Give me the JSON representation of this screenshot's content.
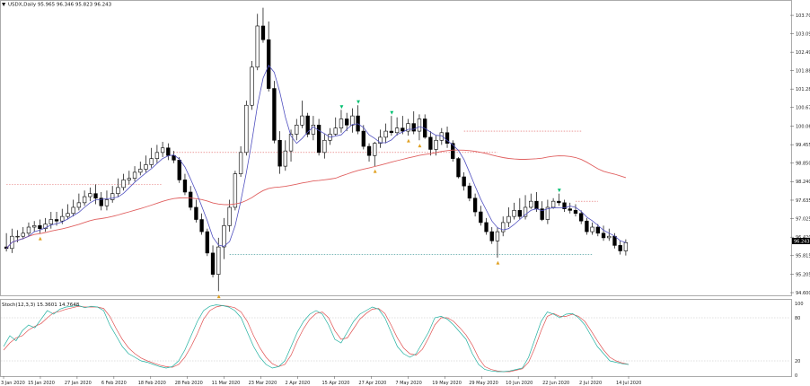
{
  "window": {
    "symbol_title": "USDX,Daily  95.965 96.346 95.823 96.243",
    "menu_glyph": "▼"
  },
  "oscillator": {
    "title": "Stoch(12,3,3) 15.3601 14.7648",
    "levels": [
      "100",
      "80",
      "20",
      "0"
    ]
  },
  "price_axis": {
    "labels": [
      "103.700",
      "103.095",
      "102.490",
      "101.886",
      "101.281",
      "100.676",
      "100.060",
      "99.455",
      "98.850",
      "98.240",
      "97.635",
      "97.025",
      "96.420",
      "95.815",
      "95.205",
      "94.600"
    ],
    "current_price": "96.243"
  },
  "time_axis": {
    "labels": [
      "3 Jan 2020",
      "15 Jan 2020",
      "27 Jan 2020",
      "6 Feb 2020",
      "18 Feb 2020",
      "28 Feb 2020",
      "11 Mar 2020",
      "23 Mar 2020",
      "2 Apr 2020",
      "15 Apr 2020",
      "27 Apr 2020",
      "7 May 2020",
      "19 May 2020",
      "29 May 2020",
      "10 Jun 2020",
      "22 Jun 2020",
      "2 Jul 2020",
      "14 Jul 2020"
    ]
  },
  "colors": {
    "bull_candle": "#ffffff",
    "bear_candle": "#000000",
    "ma_long": "#e06060",
    "ma_short": "#5050c0",
    "stoch_main": "#20b0a0",
    "stoch_signal": "#e05050",
    "sr_line": "#e06060",
    "support_line": "#309090",
    "grid": "#c0c0c0",
    "arrow_up": "#00c070",
    "arrow_down": "#e0a020"
  },
  "chart_data": {
    "type": "candlestick",
    "title": "USDX,Daily  95.965 96.346 95.823 96.243",
    "ylim": [
      94.6,
      103.85
    ],
    "series": [
      {
        "kind": "ohlc",
        "o": [
          96.1,
          96.05,
          96.45,
          96.45,
          96.55,
          96.75,
          96.8,
          96.7,
          96.85,
          97.0,
          96.95,
          97.1,
          97.2,
          97.4,
          97.55,
          97.75,
          97.85,
          97.7,
          97.45,
          97.65,
          97.85,
          98.05,
          98.3,
          98.35,
          98.55,
          98.65,
          98.8,
          99.0,
          99.2,
          99.35,
          99.1,
          98.95,
          98.3,
          97.9,
          97.4,
          97.0,
          96.6,
          95.9,
          95.2,
          96.1,
          96.8,
          97.4,
          98.5,
          99.2,
          100.75,
          102.0,
          103.35,
          102.9,
          101.3,
          99.6,
          98.75,
          99.25,
          99.8,
          100.1,
          100.4,
          99.8,
          100.1,
          99.2,
          99.6,
          99.8,
          100.0,
          100.3,
          100.1,
          100.4,
          99.9,
          99.4,
          99.1,
          99.5,
          99.7,
          99.9,
          99.85,
          100.0,
          99.9,
          100.15,
          99.9,
          100.3,
          99.7,
          99.3,
          99.6,
          99.85,
          99.5,
          99.0,
          98.4,
          98.1,
          97.7,
          97.25,
          96.9,
          96.6,
          96.3,
          96.6,
          96.9,
          97.1,
          97.3,
          97.1,
          97.4,
          97.6,
          97.35,
          97.0,
          97.4,
          97.6,
          97.55,
          97.35,
          97.3,
          97.2,
          96.95,
          96.6,
          96.75,
          96.55,
          96.4,
          96.45,
          96.15,
          95.97
        ],
        "h": [
          96.55,
          96.7,
          96.65,
          96.75,
          96.9,
          96.95,
          97.0,
          97.05,
          97.25,
          97.25,
          97.35,
          97.5,
          97.65,
          97.85,
          97.95,
          98.05,
          98.15,
          97.9,
          97.95,
          98.1,
          98.35,
          98.5,
          98.6,
          98.75,
          98.9,
          99.1,
          99.35,
          99.45,
          99.55,
          99.5,
          99.25,
          99.05,
          98.5,
          98.1,
          97.65,
          97.2,
          96.7,
          96.15,
          96.4,
          97.05,
          97.65,
          98.6,
          99.4,
          100.9,
          102.2,
          103.75,
          103.95,
          103.5,
          101.55,
          99.9,
          99.6,
          99.95,
          100.3,
          100.9,
          100.5,
          100.4,
          100.3,
          99.8,
          100.0,
          100.35,
          100.6,
          100.5,
          100.65,
          100.75,
          100.1,
          99.5,
          99.55,
          99.95,
          100.15,
          100.4,
          100.35,
          100.4,
          100.3,
          100.55,
          100.45,
          100.45,
          99.9,
          99.75,
          100.0,
          100.05,
          99.6,
          99.05,
          98.55,
          98.2,
          97.85,
          97.45,
          97.05,
          96.75,
          96.75,
          97.1,
          97.4,
          97.55,
          97.7,
          97.8,
          97.85,
          97.9,
          97.6,
          97.65,
          97.7,
          97.85,
          97.65,
          97.55,
          97.5,
          97.3,
          97.05,
          96.9,
          96.85,
          96.8,
          96.7,
          96.55,
          96.3,
          96.35
        ],
        "l": [
          95.95,
          95.9,
          96.25,
          96.35,
          96.45,
          96.6,
          96.55,
          96.6,
          96.7,
          96.8,
          96.85,
          97.0,
          97.1,
          97.3,
          97.45,
          97.6,
          97.5,
          97.3,
          97.3,
          97.55,
          97.75,
          97.95,
          98.15,
          98.25,
          98.45,
          98.55,
          98.7,
          98.85,
          99.05,
          98.95,
          98.85,
          98.2,
          97.8,
          97.3,
          96.9,
          96.5,
          95.8,
          95.1,
          94.65,
          95.7,
          96.6,
          97.3,
          98.4,
          99.1,
          100.6,
          101.9,
          102.8,
          101.2,
          99.5,
          98.5,
          98.6,
          98.9,
          99.6,
          100.0,
          99.7,
          99.6,
          99.1,
          99.0,
          99.45,
          99.75,
          99.85,
          99.9,
          99.85,
          99.8,
          99.3,
          98.9,
          98.75,
          99.35,
          99.5,
          99.75,
          99.75,
          99.8,
          99.75,
          99.8,
          99.6,
          99.65,
          99.1,
          99.1,
          99.45,
          99.35,
          98.9,
          98.35,
          97.95,
          97.6,
          97.1,
          96.8,
          96.5,
          96.2,
          95.75,
          96.45,
          96.75,
          97.0,
          97.0,
          97.0,
          97.35,
          97.25,
          96.95,
          96.85,
          97.35,
          97.45,
          97.25,
          97.2,
          97.1,
          96.85,
          96.5,
          96.5,
          96.45,
          96.3,
          96.3,
          96.05,
          95.85,
          95.82
        ],
        "c": [
          96.05,
          96.45,
          96.45,
          96.55,
          96.75,
          96.8,
          96.7,
          96.85,
          97.0,
          96.95,
          97.1,
          97.2,
          97.4,
          97.55,
          97.75,
          97.85,
          97.7,
          97.45,
          97.65,
          97.85,
          98.05,
          98.3,
          98.35,
          98.55,
          98.65,
          98.8,
          99.0,
          99.2,
          99.35,
          99.1,
          98.95,
          98.3,
          97.9,
          97.4,
          97.0,
          96.6,
          95.9,
          95.2,
          96.1,
          96.8,
          97.4,
          98.5,
          99.2,
          100.75,
          102.0,
          103.35,
          102.9,
          101.3,
          99.6,
          98.75,
          99.25,
          99.8,
          100.1,
          100.4,
          99.8,
          100.1,
          99.2,
          99.6,
          99.8,
          100.0,
          100.3,
          100.1,
          100.4,
          99.9,
          99.4,
          99.1,
          99.5,
          99.7,
          99.9,
          99.85,
          100.0,
          99.9,
          100.15,
          99.9,
          100.3,
          99.7,
          99.3,
          99.6,
          99.85,
          99.5,
          99.0,
          98.4,
          98.1,
          97.7,
          97.25,
          96.9,
          96.6,
          96.3,
          96.6,
          96.9,
          97.1,
          97.3,
          97.1,
          97.4,
          97.6,
          97.35,
          97.0,
          97.4,
          97.6,
          97.55,
          97.35,
          97.3,
          97.2,
          96.95,
          96.6,
          96.75,
          96.55,
          96.4,
          96.45,
          96.15,
          95.97,
          96.24
        ]
      }
    ],
    "stochastic": {
      "main": [
        40,
        55,
        48,
        62,
        70,
        66,
        78,
        90,
        85,
        92,
        95,
        96,
        97,
        94,
        96,
        95,
        90,
        70,
        55,
        40,
        30,
        25,
        20,
        18,
        15,
        12,
        10,
        12,
        20,
        35,
        55,
        75,
        90,
        96,
        98,
        97,
        95,
        90,
        80,
        60,
        40,
        25,
        15,
        10,
        12,
        20,
        40,
        60,
        75,
        85,
        90,
        85,
        70,
        50,
        45,
        60,
        75,
        85,
        90,
        95,
        92,
        80,
        60,
        40,
        30,
        25,
        30,
        45,
        60,
        80,
        82,
        78,
        70,
        60,
        50,
        30,
        15,
        8,
        6,
        5,
        5,
        6,
        8,
        10,
        25,
        50,
        75,
        88,
        85,
        80,
        85,
        86,
        80,
        70,
        55,
        40,
        30,
        20,
        18,
        16,
        15
      ],
      "signal": [
        35,
        45,
        52,
        55,
        63,
        68,
        72,
        80,
        87,
        89,
        92,
        94,
        96,
        95,
        95,
        95,
        93,
        82,
        65,
        50,
        38,
        30,
        24,
        20,
        17,
        14,
        12,
        11,
        15,
        25,
        40,
        58,
        78,
        90,
        95,
        97,
        96,
        94,
        88,
        75,
        55,
        38,
        25,
        16,
        12,
        15,
        28,
        48,
        65,
        78,
        86,
        88,
        80,
        62,
        50,
        52,
        65,
        78,
        86,
        92,
        93,
        86,
        70,
        52,
        38,
        30,
        28,
        36,
        52,
        70,
        80,
        80,
        75,
        66,
        56,
        42,
        24,
        12,
        8,
        6,
        5,
        5,
        7,
        9,
        18,
        38,
        62,
        82,
        86,
        82,
        82,
        85,
        82,
        75,
        62,
        48,
        35,
        25,
        20,
        17,
        15
      ]
    }
  }
}
